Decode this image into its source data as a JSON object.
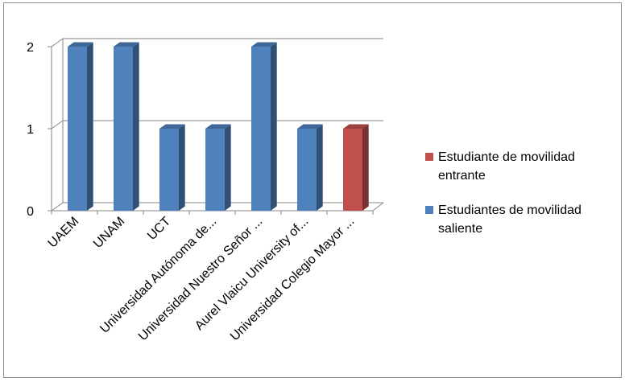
{
  "chart_data": {
    "type": "bar",
    "style": "3d-column",
    "categories": [
      "UAEM",
      "UNAM",
      "UCT",
      "Universidad Autónoma de...",
      "Universidad Nuestro Señor ...",
      "Aurel Vlaicu University of...",
      "Universidad Colegio Mayor ..."
    ],
    "series": [
      {
        "name": "Estudiantes de movilidad saliente",
        "color": "#4F81BD",
        "values": [
          2,
          2,
          1,
          1,
          2,
          1,
          0
        ]
      },
      {
        "name": "Estudiante de movilidad entrante",
        "color": "#C0504D",
        "values": [
          0,
          0,
          0,
          0,
          0,
          0,
          1
        ]
      }
    ],
    "y_ticks": [
      "0",
      "1",
      "2"
    ],
    "ylim": [
      0,
      2
    ],
    "grid": true,
    "legend": {
      "position": "right",
      "entries": [
        {
          "line1": "Estudiante de movilidad",
          "line2": "entrante",
          "color": "#C0504D"
        },
        {
          "line1": "Estudiantes de movilidad",
          "line2": "saliente",
          "color": "#4F81BD"
        }
      ]
    }
  }
}
